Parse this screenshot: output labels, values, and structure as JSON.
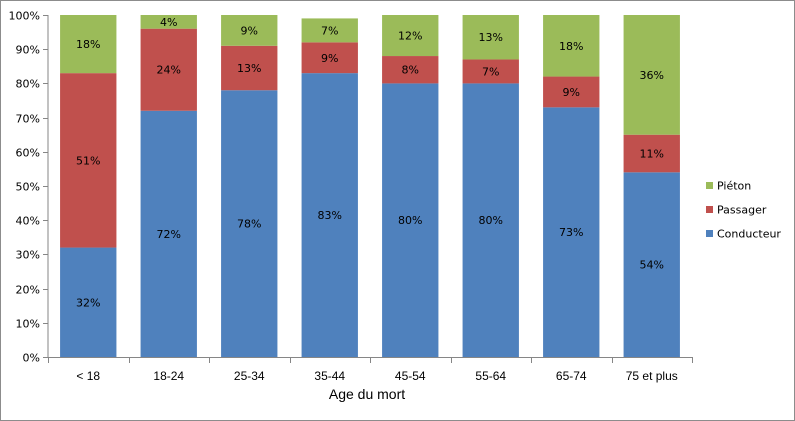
{
  "chart_data": {
    "type": "bar",
    "stacked": true,
    "percent_scale": true,
    "xlabel": "Age du mort",
    "ylabel": "",
    "ylim": [
      0,
      100
    ],
    "y_ticks": [
      "0%",
      "10%",
      "20%",
      "30%",
      "40%",
      "50%",
      "60%",
      "70%",
      "80%",
      "90%",
      "100%"
    ],
    "grid": false,
    "legend_position": "right",
    "categories": [
      "< 18",
      "18-24",
      "25-34",
      "35-44",
      "45-54",
      "55-64",
      "65-74",
      "75 et plus"
    ],
    "series": [
      {
        "name": "Conducteur",
        "color": "#4f81bd",
        "values": [
          32,
          72,
          78,
          83,
          80,
          80,
          73,
          54
        ]
      },
      {
        "name": "Passager",
        "color": "#c0504d",
        "values": [
          51,
          24,
          13,
          9,
          8,
          7,
          9,
          11
        ]
      },
      {
        "name": "Piéton",
        "color": "#9bbb59",
        "values": [
          18,
          4,
          9,
          7,
          12,
          13,
          18,
          36
        ]
      }
    ]
  }
}
